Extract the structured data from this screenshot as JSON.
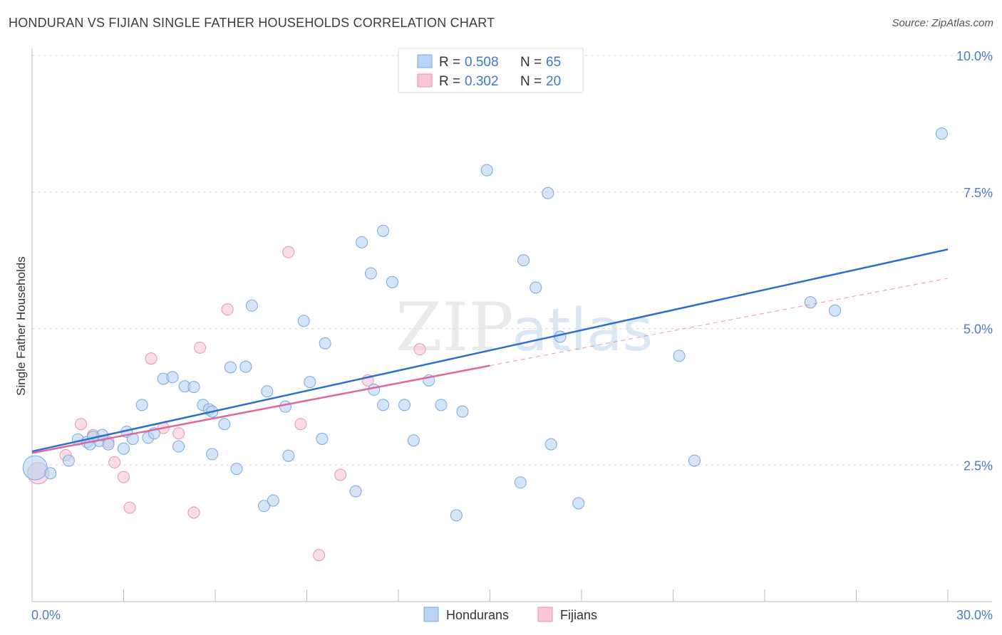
{
  "header": {
    "title": "HONDURAN VS FIJIAN SINGLE FATHER HOUSEHOLDS CORRELATION CHART",
    "source": "Source: ZipAtlas.com"
  },
  "watermark": {
    "zip": "ZIP",
    "atlas": "atlas"
  },
  "colors": {
    "blue_fill": "#b8d3f3",
    "blue_stroke": "#7aa8dd",
    "blue_line": "#2e6fce",
    "pink_fill": "#f8c6d6",
    "pink_stroke": "#ea93b1",
    "pink_line": "#e0679a",
    "tick_label": "#4a7cc9",
    "grid": "#dcdcdc"
  },
  "legend": {
    "rows": [
      {
        "series": "Hondurans",
        "r_label": "R =",
        "r_value": "0.508",
        "n_label": "N =",
        "n_value": "65"
      },
      {
        "series": "Fijians",
        "r_label": "R =",
        "r_value": "0.302",
        "n_label": "N =",
        "n_value": "20"
      }
    ]
  },
  "chart_data": {
    "type": "scatter",
    "title": "HONDURAN VS FIJIAN SINGLE FATHER HOUSEHOLDS CORRELATION CHART",
    "xlabel": "",
    "ylabel": "Single Father Households",
    "xlim": [
      0,
      30
    ],
    "ylim": [
      0,
      10
    ],
    "x_tick_labels": {
      "0": "0.0%",
      "30": "30.0%"
    },
    "y_ticks": [
      {
        "value": 2.5,
        "label": "2.5%"
      },
      {
        "value": 5.0,
        "label": "5.0%"
      },
      {
        "value": 7.5,
        "label": "7.5%"
      },
      {
        "value": 10.0,
        "label": "10.0%"
      }
    ],
    "legend_position": "top-center",
    "series": [
      {
        "name": "Hondurans",
        "color": "#7aa8dd",
        "trend": {
          "x_start": 0,
          "y_start": 2.75,
          "x_end": 30,
          "y_end": 6.45
        },
        "points": [
          {
            "x": 0.1,
            "y": 2.45,
            "big": true
          },
          {
            "x": 0.6,
            "y": 2.35
          },
          {
            "x": 1.2,
            "y": 2.58
          },
          {
            "x": 1.5,
            "y": 2.97
          },
          {
            "x": 1.8,
            "y": 2.92
          },
          {
            "x": 1.9,
            "y": 2.88
          },
          {
            "x": 2.2,
            "y": 2.94
          },
          {
            "x": 2.3,
            "y": 3.05
          },
          {
            "x": 2.5,
            "y": 2.88
          },
          {
            "x": 3.0,
            "y": 2.8
          },
          {
            "x": 3.1,
            "y": 3.11
          },
          {
            "x": 3.3,
            "y": 2.98
          },
          {
            "x": 3.6,
            "y": 3.6
          },
          {
            "x": 3.8,
            "y": 3.0
          },
          {
            "x": 4.0,
            "y": 3.08
          },
          {
            "x": 4.3,
            "y": 4.08
          },
          {
            "x": 4.6,
            "y": 4.11
          },
          {
            "x": 4.8,
            "y": 2.84
          },
          {
            "x": 5.0,
            "y": 3.94
          },
          {
            "x": 5.3,
            "y": 3.93
          },
          {
            "x": 5.6,
            "y": 3.6
          },
          {
            "x": 5.8,
            "y": 3.52
          },
          {
            "x": 5.9,
            "y": 2.7
          },
          {
            "x": 6.3,
            "y": 3.25
          },
          {
            "x": 6.5,
            "y": 4.29
          },
          {
            "x": 6.7,
            "y": 2.43
          },
          {
            "x": 7.0,
            "y": 4.3
          },
          {
            "x": 7.2,
            "y": 5.42
          },
          {
            "x": 7.6,
            "y": 1.75
          },
          {
            "x": 7.7,
            "y": 3.85
          },
          {
            "x": 7.9,
            "y": 1.85
          },
          {
            "x": 8.3,
            "y": 3.57
          },
          {
            "x": 8.4,
            "y": 2.67
          },
          {
            "x": 8.9,
            "y": 5.14
          },
          {
            "x": 9.1,
            "y": 4.02
          },
          {
            "x": 9.5,
            "y": 2.98
          },
          {
            "x": 9.6,
            "y": 4.73
          },
          {
            "x": 10.6,
            "y": 2.02
          },
          {
            "x": 10.8,
            "y": 6.58
          },
          {
            "x": 11.1,
            "y": 6.01
          },
          {
            "x": 11.2,
            "y": 3.88
          },
          {
            "x": 11.5,
            "y": 6.79
          },
          {
            "x": 11.8,
            "y": 5.85
          },
          {
            "x": 12.2,
            "y": 3.6
          },
          {
            "x": 12.5,
            "y": 2.95
          },
          {
            "x": 13.0,
            "y": 4.05
          },
          {
            "x": 13.4,
            "y": 3.6
          },
          {
            "x": 13.9,
            "y": 1.58
          },
          {
            "x": 14.1,
            "y": 3.48
          },
          {
            "x": 14.9,
            "y": 7.9
          },
          {
            "x": 16.0,
            "y": 2.18
          },
          {
            "x": 16.1,
            "y": 6.25
          },
          {
            "x": 16.5,
            "y": 5.75
          },
          {
            "x": 16.9,
            "y": 7.48
          },
          {
            "x": 17.0,
            "y": 2.88
          },
          {
            "x": 17.3,
            "y": 4.85
          },
          {
            "x": 17.9,
            "y": 1.8
          },
          {
            "x": 21.2,
            "y": 4.5
          },
          {
            "x": 21.7,
            "y": 2.58
          },
          {
            "x": 25.5,
            "y": 5.48
          },
          {
            "x": 26.3,
            "y": 5.33
          },
          {
            "x": 29.8,
            "y": 8.57
          },
          {
            "x": 5.9,
            "y": 3.48
          },
          {
            "x": 11.5,
            "y": 3.6
          },
          {
            "x": 2.0,
            "y": 3.02
          }
        ]
      },
      {
        "name": "Fijians",
        "color": "#ea93b1",
        "trend": {
          "x_start": 0,
          "y_start": 2.72,
          "x_end": 15.0,
          "y_end": 4.32
        },
        "trend_extension": {
          "x_start": 15.0,
          "y_start": 4.32,
          "x_end": 30,
          "y_end": 5.92
        },
        "points": [
          {
            "x": 0.2,
            "y": 2.35,
            "big": true
          },
          {
            "x": 1.1,
            "y": 2.68
          },
          {
            "x": 1.6,
            "y": 3.25
          },
          {
            "x": 2.0,
            "y": 3.05
          },
          {
            "x": 2.5,
            "y": 2.92
          },
          {
            "x": 2.7,
            "y": 2.55
          },
          {
            "x": 3.0,
            "y": 2.28
          },
          {
            "x": 3.2,
            "y": 1.72
          },
          {
            "x": 3.9,
            "y": 4.45
          },
          {
            "x": 4.3,
            "y": 3.18
          },
          {
            "x": 4.8,
            "y": 3.08
          },
          {
            "x": 5.3,
            "y": 1.63
          },
          {
            "x": 5.5,
            "y": 4.65
          },
          {
            "x": 6.4,
            "y": 5.35
          },
          {
            "x": 8.4,
            "y": 6.4
          },
          {
            "x": 8.8,
            "y": 3.25
          },
          {
            "x": 9.4,
            "y": 0.85
          },
          {
            "x": 10.1,
            "y": 2.32
          },
          {
            "x": 11.0,
            "y": 4.05
          },
          {
            "x": 12.7,
            "y": 4.62
          }
        ]
      }
    ]
  }
}
